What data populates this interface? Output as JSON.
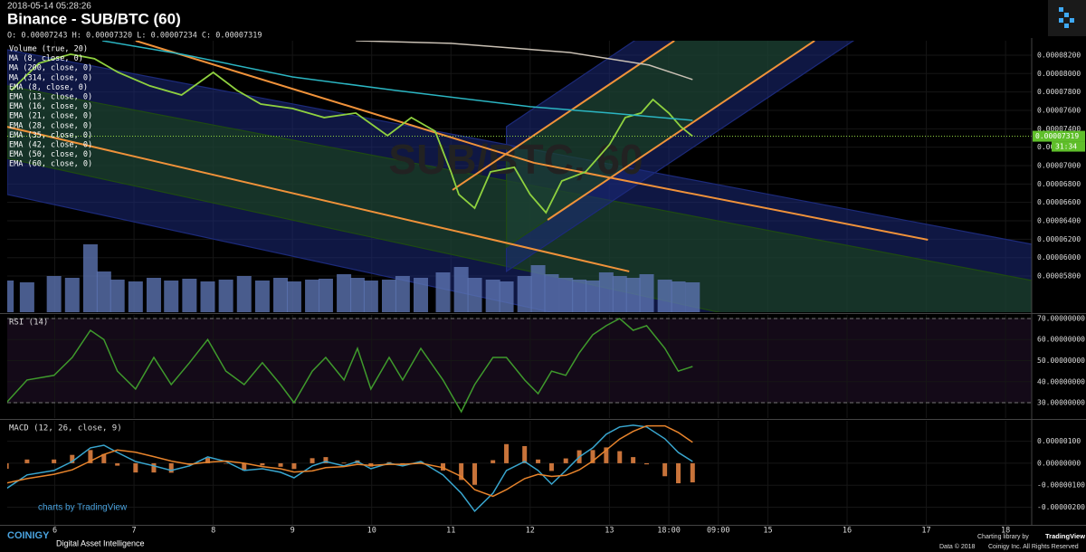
{
  "header": {
    "timestamp": "2018-05-14 05:28:26",
    "title": "Binance - SUB/BTC (60)",
    "ohlc": "O: 0.00007243 H: 0.00007320 L: 0.00007234 C: 0.00007319"
  },
  "branding": {
    "tv_watermark": "charts by TradingView",
    "logo": "COINIGY",
    "tagline": "Digital Asset Intelligence",
    "library": "Charting library by",
    "library_name": "TradingView",
    "data_credit": "Data © 2018",
    "rights": "Coinigy Inc. All Rights Reserved"
  },
  "chart_data": [
    {
      "type": "line",
      "watermark": "SUB/BTC, 60",
      "legend": [
        "Volume (true, 20)",
        "MA (8, close, 0)",
        "MA (200, close, 0)",
        "MA (314, close, 0)",
        "EMA (8, close, 0)",
        "EMA (13, close, 0)",
        "EMA (16, close, 0)",
        "EMA (21, close, 0)",
        "EMA (28, close, 0)",
        "EMA (35, close, 0)",
        "EMA (42, close, 0)",
        "EMA (50, close, 0)",
        "EMA (60, close, 0)"
      ],
      "xlim": [
        5.4,
        18.33
      ],
      "ylim": [
        5.407e-05,
        8.357e-05
      ],
      "yticks": [
        {
          "value": 8.2e-05,
          "label": "0.00008200"
        },
        {
          "value": 8e-05,
          "label": "0.00008000"
        },
        {
          "value": 7.8e-05,
          "label": "0.00007800"
        },
        {
          "value": 7.6e-05,
          "label": "0.00007600"
        },
        {
          "value": 7.4e-05,
          "label": "0.00007400"
        },
        {
          "value": 7.2e-05,
          "label": "0.00007200"
        },
        {
          "value": 7e-05,
          "label": "0.00007000"
        },
        {
          "value": 6.8e-05,
          "label": "0.00006800"
        },
        {
          "value": 6.6e-05,
          "label": "0.00006600"
        },
        {
          "value": 6.4e-05,
          "label": "0.00006400"
        },
        {
          "value": 6.2e-05,
          "label": "0.00006200"
        },
        {
          "value": 6e-05,
          "label": "0.00006000"
        },
        {
          "value": 5.8e-05,
          "label": "0.00005800"
        }
      ],
      "series": [
        {
          "color": "#8fd13f",
          "x": [
            5.45,
            5.8,
            6.2,
            6.5,
            6.8,
            7.2,
            7.6,
            8.0,
            8.3,
            8.6,
            9.0,
            9.4,
            9.8,
            10.2,
            10.5,
            10.8,
            11.0,
            11.1,
            11.3,
            11.5,
            11.8,
            12.0,
            12.2,
            12.4,
            12.7,
            13.0,
            13.2,
            13.4,
            13.55,
            13.75,
            13.9,
            14.05
          ],
          "values": [
            7.817e-05,
            8.112e-05,
            8.21e-05,
            8.161e-05,
            8.013e-05,
            7.866e-05,
            7.767e-05,
            8.013e-05,
            7.817e-05,
            7.669e-05,
            7.62e-05,
            7.522e-05,
            7.571e-05,
            7.325e-05,
            7.522e-05,
            7.374e-05,
            6.932e-05,
            6.686e-05,
            6.538e-05,
            6.932e-05,
            6.981e-05,
            6.686e-05,
            6.489e-05,
            6.833e-05,
            6.932e-05,
            7.227e-05,
            7.522e-05,
            7.571e-05,
            7.718e-05,
            7.571e-05,
            7.423e-05,
            7.319e-05
          ]
        },
        {
          "color": "#2bb5c2",
          "x": [
            6.6,
            7.6,
            9.0,
            10.3,
            12.0,
            13.0,
            14.05
          ],
          "values": [
            8.357e-05,
            8.21e-05,
            7.964e-05,
            7.817e-05,
            7.64e-05,
            7.571e-05,
            7.492e-05
          ]
        },
        {
          "color": "#c9c0b4",
          "x": [
            9.8,
            11.0,
            12.5,
            13.5,
            14.05
          ],
          "values": [
            8.357e-05,
            8.328e-05,
            8.229e-05,
            8.092e-05,
            7.935e-05
          ]
        }
      ],
      "volume": {
        "color": "#5b73b0",
        "ylim": [
          0,
          100
        ],
        "x": [
          5.39,
          5.65,
          5.99,
          6.22,
          6.45,
          6.62,
          6.79,
          7.02,
          7.25,
          7.47,
          7.7,
          7.93,
          8.16,
          8.39,
          8.62,
          8.85,
          9.02,
          9.25,
          9.42,
          9.65,
          9.82,
          9.99,
          10.22,
          10.39,
          10.62,
          10.9,
          11.13,
          11.3,
          11.53,
          11.7,
          11.93,
          12.1,
          12.27,
          12.45,
          12.62,
          12.79,
          12.96,
          13.13,
          13.3,
          13.47,
          13.7,
          13.87,
          14.05
        ],
        "values": [
          35,
          33,
          40,
          38,
          75,
          45,
          36,
          34,
          38,
          35,
          37,
          34,
          36,
          40,
          35,
          38,
          34,
          36,
          37,
          42,
          38,
          35,
          36,
          40,
          38,
          44,
          50,
          38,
          36,
          34,
          40,
          52,
          42,
          38,
          36,
          35,
          44,
          40,
          38,
          42,
          36,
          34,
          33
        ]
      },
      "trendlines": [
        {
          "color": "#f0923a",
          "x": [
            7.02,
            12.05
          ],
          "y": [
            8.357e-05,
            7.03e-05
          ]
        },
        {
          "color": "#f0923a",
          "x": [
            12.05,
            17.02
          ],
          "y": [
            7.03e-05,
            6.194e-05
          ]
        },
        {
          "color": "#f0923a",
          "x": [
            11.02,
            13.82
          ],
          "y": [
            6.735e-05,
            8.357e-05
          ]
        },
        {
          "color": "#f0923a",
          "x": [
            12.22,
            15.59
          ],
          "y": [
            6.41e-05,
            8.357e-05
          ]
        },
        {
          "color": "#f0923a",
          "x": [
            5.39,
            13.25
          ],
          "y": [
            7.423e-05,
            5.85e-05
          ]
        }
      ],
      "channels": [
        {
          "color": "#1c2a7a",
          "x": [
            5.4,
            18.33
          ],
          "upper": [
            8.259e-05,
            6.145e-05
          ],
          "lower": [
            6.686e-05,
            4.277e-05
          ]
        },
        {
          "color": "#1e4a12",
          "x": [
            5.4,
            18.33
          ],
          "upper": [
            7.866e-05,
            5.752e-05
          ],
          "lower": [
            7.079e-05,
            4.67e-05
          ]
        },
        {
          "color": "#1c2a7a",
          "x": [
            11.7,
            18.33
          ],
          "upper": [
            7.423e-05,
            0.00011258
          ],
          "lower": [
            5.85e-05,
            9.645e-05
          ]
        },
        {
          "color": "#1e4a12",
          "x": [
            11.7,
            18.33
          ],
          "upper": [
            7.128e-05,
            0.00010963
          ],
          "lower": [
            6.115e-05,
            9.94e-05
          ]
        }
      ],
      "last_price": {
        "value": 7.319e-05,
        "label": "0.00007319"
      },
      "countdown": "31:34"
    },
    {
      "type": "line",
      "title": "RSI (14)",
      "xlim": [
        5.4,
        18.33
      ],
      "ylim": [
        22.7,
        71.7
      ],
      "yticks": [
        {
          "value": 30,
          "label": "30.00000000"
        },
        {
          "value": 40,
          "label": "40.00000000"
        },
        {
          "value": 50,
          "label": "50.00000000"
        },
        {
          "value": 60,
          "label": "60.00000000"
        },
        {
          "value": 70,
          "label": "70.00000000"
        }
      ],
      "levels": [
        30,
        70
      ],
      "series": [
        {
          "color": "#3f9a2c",
          "x": [
            5.39,
            5.65,
            5.99,
            6.22,
            6.45,
            6.62,
            6.79,
            7.02,
            7.25,
            7.47,
            7.7,
            7.93,
            8.16,
            8.39,
            8.62,
            8.85,
            9.02,
            9.25,
            9.42,
            9.65,
            9.82,
            9.99,
            10.22,
            10.39,
            10.62,
            10.9,
            11.13,
            11.3,
            11.53,
            11.7,
            11.93,
            12.1,
            12.27,
            12.45,
            12.62,
            12.79,
            12.96,
            13.13,
            13.3,
            13.47,
            13.7,
            13.87,
            14.05
          ],
          "values": [
            30,
            40.8,
            43,
            51.5,
            64.4,
            60,
            45,
            36.5,
            51.5,
            38.6,
            49,
            60,
            45,
            38.6,
            49,
            38.6,
            30,
            45,
            51.5,
            40.8,
            55.8,
            36.5,
            51.5,
            40.8,
            55.8,
            40.8,
            25.7,
            38.6,
            51.5,
            51.5,
            40.8,
            34.3,
            45,
            43,
            53.7,
            62.3,
            66.6,
            70,
            64.4,
            66.6,
            55.8,
            45,
            47.2
          ]
        }
      ]
    },
    {
      "type": "line",
      "title": "MACD (12, 26, close, 9)",
      "xlim": [
        5.4,
        18.33
      ],
      "ylim": [
        -2.8e-06,
        1.93e-06
      ],
      "yticks": [
        {
          "value": 1e-06,
          "label": "0.00000100"
        },
        {
          "value": 0,
          "label": "0.00000000"
        },
        {
          "value": -1e-06,
          "label": "-0.00000100"
        },
        {
          "value": -2e-06,
          "label": "-0.00000200"
        }
      ],
      "xticks": [
        6,
        7,
        8,
        9,
        10,
        11,
        12,
        13,
        {
          "value": 13.75,
          "label": "18:00"
        },
        {
          "value": 14.375,
          "label": "09:00"
        },
        15,
        16,
        17,
        18
      ],
      "x": [
        5.39,
        5.65,
        5.99,
        6.22,
        6.45,
        6.62,
        6.79,
        7.02,
        7.25,
        7.47,
        7.7,
        7.93,
        8.16,
        8.39,
        8.62,
        8.85,
        9.02,
        9.25,
        9.42,
        9.65,
        9.82,
        9.99,
        10.22,
        10.39,
        10.62,
        10.9,
        11.13,
        11.3,
        11.53,
        11.7,
        11.93,
        12.1,
        12.27,
        12.45,
        12.62,
        12.79,
        12.96,
        13.13,
        13.3,
        13.47,
        13.7,
        13.87,
        14.05
      ],
      "histogram": {
        "color": "#c8733a",
        "values": [
          -2.5e-07,
          1.7e-07,
          1.7e-07,
          3.8e-07,
          6e-07,
          4.2e-07,
          -1.1e-07,
          -4.2e-07,
          -4.2e-07,
          -4.3e-07,
          -7e-08,
          2.4e-07,
          -2e-08,
          -3.3e-07,
          -1e-07,
          -1.6e-07,
          -2.6e-07,
          2.3e-07,
          2.8e-07,
          3e-08,
          1.3e-07,
          -1.5e-07,
          5e-08,
          -7e-08,
          8e-08,
          -3.3e-07,
          -7.6e-07,
          -9.8e-07,
          1.4e-07,
          8.7e-07,
          7.8e-07,
          1.7e-07,
          -3.5e-07,
          2.2e-07,
          5.9e-07,
          6e-07,
          7.2e-07,
          5.5e-07,
          2.8e-07,
          -5e-08,
          -5.9e-07,
          -9.1e-07,
          -8.7e-07
        ]
      },
      "series": [
        {
          "color": "#39a6cf",
          "values": [
            -1.15e-06,
            -5.3e-07,
            -3.3e-07,
            8e-08,
            7e-07,
            8.2e-07,
            4.9e-07,
            8e-08,
            -1.2e-07,
            -3.3e-07,
            -1.2e-07,
            2.9e-07,
            8e-08,
            -3.3e-07,
            -2.5e-07,
            -4.1e-07,
            -6.6e-07,
            -1.2e-07,
            8e-08,
            -1.2e-07,
            8e-08,
            -2.5e-07,
            0,
            -1.2e-07,
            8e-08,
            -5.3e-07,
            -1.36e-06,
            -2.18e-06,
            -1.36e-06,
            -3.3e-07,
            8e-08,
            -3.3e-07,
            -9.5e-07,
            -3.3e-07,
            2.9e-07,
            7e-07,
            1.32e-06,
            1.65e-06,
            1.73e-06,
            1.65e-06,
            1.11e-06,
            4.9e-07,
            8e-08
          ]
        },
        {
          "color": "#e8842c",
          "values": [
            -9e-07,
            -7e-07,
            -5e-07,
            -3e-07,
            1e-07,
            4e-07,
            6e-07,
            5e-07,
            3e-07,
            1e-07,
            -5e-08,
            5e-08,
            1e-07,
            0,
            -1.5e-07,
            -2.5e-07,
            -4e-07,
            -3.5e-07,
            -2e-07,
            -1.5e-07,
            -5e-08,
            -1e-07,
            -5e-08,
            -5e-08,
            0,
            -2e-07,
            -6e-07,
            -1.2e-06,
            -1.5e-06,
            -1.2e-06,
            -7e-07,
            -5e-07,
            -6e-07,
            -5.5e-07,
            -3e-07,
            1e-07,
            6e-07,
            1.1e-06,
            1.45e-06,
            1.7e-06,
            1.7e-06,
            1.4e-06,
            9.5e-07
          ]
        }
      ]
    }
  ]
}
